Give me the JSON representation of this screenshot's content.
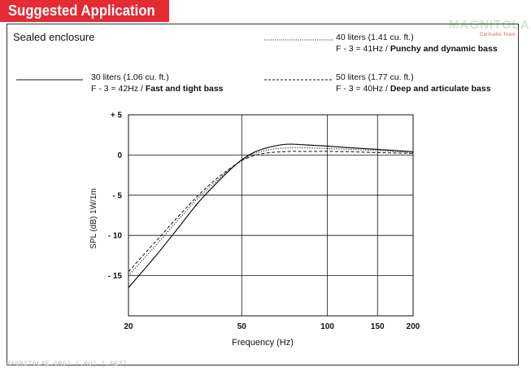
{
  "header": {
    "title": "Suggested Application"
  },
  "logo": {
    "text": "MAGNITOLA",
    "sub": "CarAudio Team"
  },
  "watermark": {
    "text": "MAGNITOLAE.ORG] [.RU] [.NET]"
  },
  "colors": {
    "header_bg": "#e42b33",
    "header_text": "#ffffff",
    "line": "#111111"
  },
  "chart_data": {
    "type": "line",
    "title": "Sealed enclosure",
    "xlabel": "Frequency (Hz)",
    "ylabel": "SPL (dB) 1W/1m",
    "xscale": "log",
    "xlim": [
      20,
      200
    ],
    "ylim": [
      -20,
      5
    ],
    "x_ticks": [
      20,
      50,
      100,
      150,
      200
    ],
    "x_tick_labels": [
      "20",
      "50",
      "100",
      "150",
      "200"
    ],
    "y_ticks": [
      5,
      0,
      -5,
      -10,
      -15
    ],
    "y_tick_labels": [
      "+ 5",
      "0",
      "- 5",
      "- 10",
      "- 15"
    ],
    "grid": true,
    "series": [
      {
        "name": "30 liters (1.06 cu. ft.)",
        "line": "solid",
        "descriptor_plain": "F - 3 = 42Hz / ",
        "descriptor_bold": "Fast and tight bass",
        "x": [
          20,
          25,
          30,
          35,
          40,
          45,
          50,
          55,
          60,
          65,
          70,
          75,
          80,
          90,
          100,
          120,
          150,
          200
        ],
        "y": [
          -16.5,
          -12.5,
          -9,
          -6,
          -3.8,
          -2,
          -0.6,
          0.3,
          0.8,
          1.1,
          1.3,
          1.35,
          1.3,
          1.2,
          1.1,
          0.9,
          0.7,
          0.4
        ]
      },
      {
        "name": "40 liters (1.41 cu. ft.)",
        "line": "dotted",
        "descriptor_plain": "F - 3 = 41Hz / ",
        "descriptor_bold": "Punchy and dynamic bass",
        "x": [
          20,
          25,
          30,
          35,
          40,
          45,
          50,
          55,
          60,
          65,
          70,
          75,
          80,
          90,
          100,
          120,
          150,
          200
        ],
        "y": [
          -15,
          -11.2,
          -8,
          -5.4,
          -3.5,
          -1.9,
          -0.7,
          0.1,
          0.5,
          0.75,
          0.85,
          0.9,
          0.9,
          0.85,
          0.8,
          0.7,
          0.55,
          0.3
        ]
      },
      {
        "name": "50 liters (1.77 cu. ft.)",
        "line": "dashed",
        "descriptor_plain": "F - 3 = 40Hz / ",
        "descriptor_bold": "Deep and articulate bass",
        "x": [
          20,
          25,
          30,
          35,
          40,
          45,
          50,
          55,
          60,
          65,
          70,
          75,
          80,
          90,
          100,
          120,
          150,
          200
        ],
        "y": [
          -14.5,
          -10.7,
          -7.6,
          -5.1,
          -3.2,
          -1.8,
          -0.7,
          -0.1,
          0.2,
          0.35,
          0.4,
          0.45,
          0.45,
          0.45,
          0.45,
          0.4,
          0.3,
          0.2
        ]
      }
    ]
  }
}
